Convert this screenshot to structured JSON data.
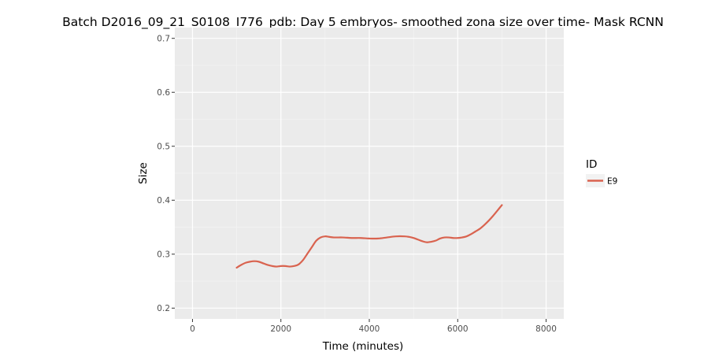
{
  "chart_data": {
    "type": "line",
    "title": "Batch D2016_09_21_S0108_I776_pdb: Day 5 embryos- smoothed zona size over time- Mask RCNN",
    "xlabel": "Time (minutes)",
    "ylabel": "Size",
    "xlim": [
      -400,
      8400
    ],
    "ylim": [
      0.18,
      0.72
    ],
    "xticks": [
      0,
      2000,
      4000,
      6000,
      8000
    ],
    "xtick_labels": [
      "0",
      "2000",
      "4000",
      "6000",
      "8000"
    ],
    "yticks": [
      0.2,
      0.3,
      0.4,
      0.5,
      0.6,
      0.7
    ],
    "ytick_labels": [
      "0.2",
      "0.3",
      "0.4",
      "0.5",
      "0.6",
      "0.7"
    ],
    "grid": true,
    "legend": {
      "title": "ID",
      "position": "right",
      "entries": [
        "E9"
      ]
    },
    "series": [
      {
        "name": "E9",
        "color": "#d9634f",
        "x": [
          1000,
          1100,
          1200,
          1300,
          1400,
          1500,
          1600,
          1700,
          1800,
          1900,
          2000,
          2100,
          2200,
          2300,
          2400,
          2500,
          2600,
          2700,
          2800,
          2900,
          3000,
          3100,
          3200,
          3400,
          3600,
          3800,
          4000,
          4200,
          4400,
          4600,
          4800,
          4900,
          5000,
          5100,
          5200,
          5300,
          5400,
          5500,
          5600,
          5700,
          5800,
          5900,
          6000,
          6100,
          6200,
          6300,
          6400,
          6500,
          6600,
          6700,
          6800,
          6900,
          7000
        ],
        "y": [
          0.275,
          0.28,
          0.284,
          0.286,
          0.287,
          0.286,
          0.283,
          0.28,
          0.278,
          0.277,
          0.278,
          0.278,
          0.277,
          0.278,
          0.281,
          0.289,
          0.301,
          0.313,
          0.325,
          0.331,
          0.333,
          0.332,
          0.331,
          0.331,
          0.33,
          0.33,
          0.329,
          0.329,
          0.331,
          0.333,
          0.333,
          0.332,
          0.33,
          0.327,
          0.324,
          0.322,
          0.323,
          0.325,
          0.329,
          0.331,
          0.331,
          0.33,
          0.33,
          0.331,
          0.333,
          0.337,
          0.342,
          0.347,
          0.354,
          0.362,
          0.371,
          0.381,
          0.391
        ]
      }
    ]
  }
}
